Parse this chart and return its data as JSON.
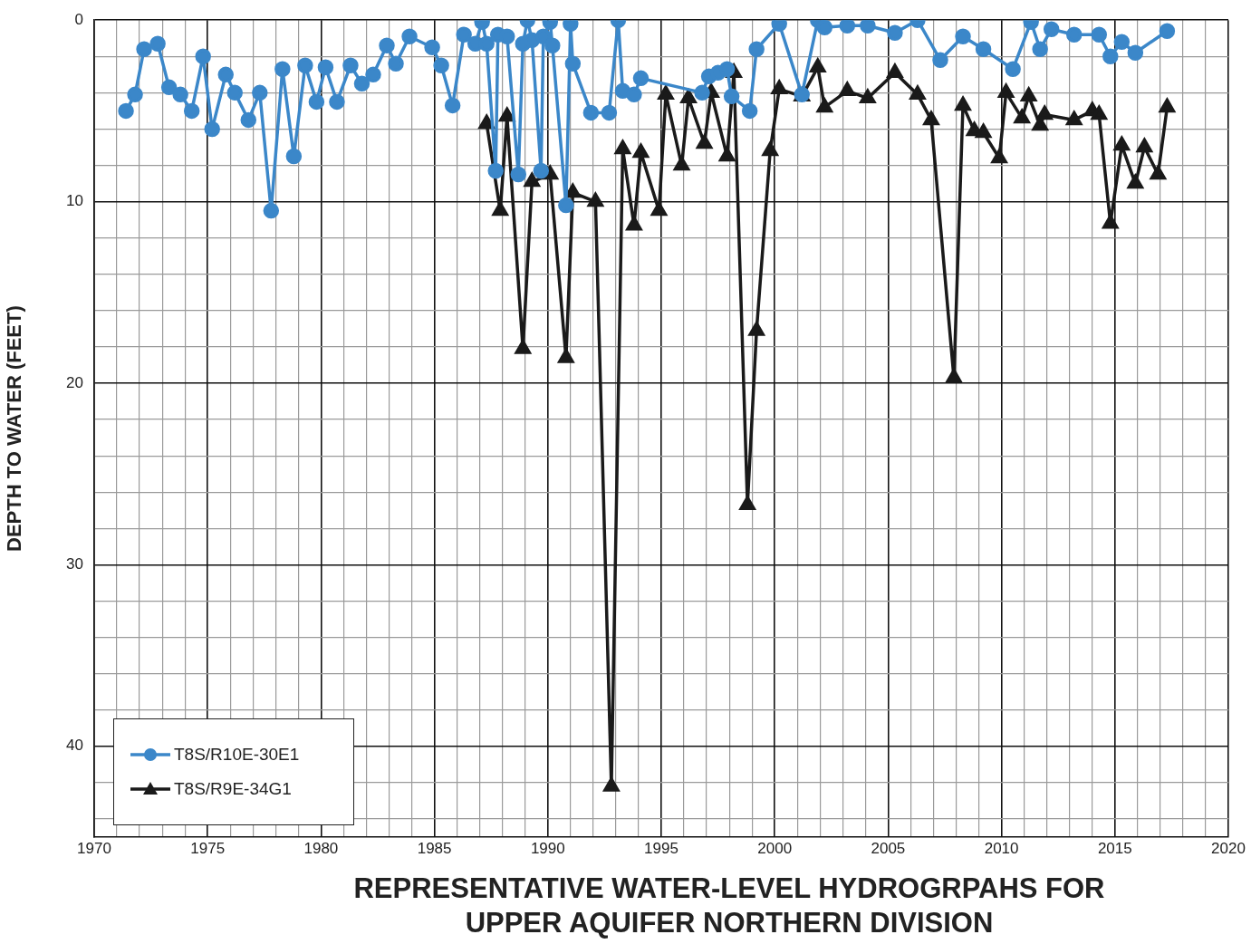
{
  "chart_data": {
    "type": "line",
    "title": "REPRESENTATIVE WATER-LEVEL HYDROGRPAHS FOR UPPER AQUIFER NORTHERN DIVISION",
    "ylabel": "DEPTH TO WATER (FEET)",
    "xlim": [
      1970,
      2020
    ],
    "ylim": [
      45,
      0
    ],
    "xticks": [
      1970,
      {
        "value": 1971,
        "label": null
      },
      {
        "value": 1972,
        "label": null
      },
      {
        "value": 1973,
        "label": null
      },
      {
        "value": 1974,
        "label": null
      },
      1975,
      {
        "value": 1976,
        "label": null
      },
      {
        "value": 1977,
        "label": null
      },
      {
        "value": 1978,
        "label": null
      },
      {
        "value": 1979,
        "label": null
      },
      1980,
      {
        "value": 1981,
        "label": null
      },
      {
        "value": 1982,
        "label": null
      },
      {
        "value": 1983,
        "label": null
      },
      {
        "value": 1984,
        "label": null
      },
      1985,
      {
        "value": 1986,
        "label": null
      },
      {
        "value": 1987,
        "label": null
      },
      {
        "value": 1988,
        "label": null
      },
      {
        "value": 1989,
        "label": null
      },
      1990,
      {
        "value": 1991,
        "label": null
      },
      {
        "value": 1992,
        "label": null
      },
      {
        "value": 1993,
        "label": null
      },
      {
        "value": 1994,
        "label": null
      },
      1995,
      {
        "value": 1996,
        "label": null
      },
      {
        "value": 1997,
        "label": null
      },
      {
        "value": 1998,
        "label": null
      },
      {
        "value": 1999,
        "label": null
      },
      2000,
      {
        "value": 2001,
        "label": null
      },
      {
        "value": 2002,
        "label": null
      },
      {
        "value": 2003,
        "label": null
      },
      {
        "value": 2004,
        "label": null
      },
      2005,
      {
        "value": 2006,
        "label": null
      },
      {
        "value": 2007,
        "label": null
      },
      {
        "value": 2008,
        "label": null
      },
      {
        "value": 2009,
        "label": null
      },
      2010,
      {
        "value": 2011,
        "label": null
      },
      {
        "value": 2012,
        "label": null
      },
      {
        "value": 2013,
        "label": null
      },
      {
        "value": 2014,
        "label": null
      },
      2015,
      {
        "value": 2016,
        "label": null
      },
      {
        "value": 2017,
        "label": null
      },
      {
        "value": 2018,
        "label": null
      },
      {
        "value": 2019,
        "label": null
      },
      2020
    ],
    "yticks": [
      0,
      {
        "value": 2,
        "label": null
      },
      {
        "value": 4,
        "label": null
      },
      {
        "value": 6,
        "label": null
      },
      {
        "value": 8,
        "label": null
      },
      10,
      {
        "value": 12,
        "label": null
      },
      {
        "value": 14,
        "label": null
      },
      {
        "value": 16,
        "label": null
      },
      {
        "value": 18,
        "label": null
      },
      20,
      {
        "value": 22,
        "label": null
      },
      {
        "value": 24,
        "label": null
      },
      {
        "value": 26,
        "label": null
      },
      {
        "value": 28,
        "label": null
      },
      30,
      {
        "value": 32,
        "label": null
      },
      {
        "value": 34,
        "label": null
      },
      {
        "value": 36,
        "label": null
      },
      {
        "value": 38,
        "label": null
      },
      40,
      {
        "value": 42,
        "label": null
      },
      {
        "value": 44,
        "label": null
      }
    ],
    "grid": true,
    "legend": "bottom left",
    "line_style": "solid",
    "series": [
      {
        "name": "T8S/R10E-30E1",
        "color": "#3b87c9",
        "marker": "circle",
        "x": [
          1971.4,
          1971.8,
          1972.2,
          1972.8,
          1973.3,
          1973.8,
          1974.3,
          1974.8,
          1975.2,
          1975.8,
          1976.2,
          1976.8,
          1977.3,
          1977.8,
          1978.3,
          1978.8,
          1979.3,
          1979.8,
          1980.2,
          1980.7,
          1981.3,
          1981.8,
          1982.3,
          1982.9,
          1983.3,
          1983.9,
          1984.9,
          1985.3,
          1985.8,
          1986.3,
          1986.8,
          1987.1,
          1987.3,
          1987.7,
          1987.8,
          1988.2,
          1988.7,
          1988.9,
          1989.1,
          1989.3,
          1989.7,
          1989.8,
          1990.1,
          1990.2,
          1990.8,
          1991.0,
          1991.1,
          1991.9,
          1992.7,
          1993.1,
          1993.3,
          1993.8,
          1994.1,
          1996.8,
          1997.1,
          1997.5,
          1997.9,
          1998.1,
          1998.9,
          1999.2,
          2000.2,
          2001.2,
          2001.9,
          2002.2,
          2003.2,
          2004.1,
          2005.3,
          2006.3,
          2007.3,
          2008.3,
          2009.2,
          2010.5,
          2011.3,
          2011.7,
          2012.2,
          2013.2,
          2014.3,
          2014.8,
          2015.3,
          2015.9,
          2017.3
        ],
        "values": [
          5.0,
          4.1,
          1.6,
          1.3,
          3.7,
          4.1,
          5.0,
          2.0,
          6.0,
          3.0,
          4.0,
          5.5,
          4.0,
          10.5,
          2.7,
          7.5,
          2.5,
          4.5,
          2.6,
          4.5,
          2.5,
          3.5,
          3.0,
          1.4,
          2.4,
          0.9,
          1.5,
          2.5,
          4.7,
          0.8,
          1.3,
          0.1,
          1.3,
          8.3,
          0.8,
          0.9,
          8.5,
          1.3,
          0,
          1.1,
          8.3,
          0.9,
          0.1,
          1.4,
          10.2,
          0.2,
          2.4,
          5.1,
          5.1,
          0,
          3.9,
          4.1,
          3.2,
          4.0,
          3.1,
          2.9,
          2.7,
          4.2,
          5.0,
          1.6,
          0.2,
          4.1,
          0,
          0.4,
          0.3,
          0.3,
          0.7,
          0,
          2.2,
          0.9,
          1.6,
          2.7,
          0.1,
          1.6,
          0.5,
          0.8,
          0.8,
          2.0,
          1.2,
          1.8,
          0.6
        ]
      },
      {
        "name": "T8S/R9E-34G1",
        "color": "#1a1a1a",
        "marker": "triangle",
        "x": [
          1987.3,
          1987.9,
          1988.2,
          1988.9,
          1989.3,
          1990.1,
          1990.8,
          1991.1,
          1992.1,
          1992.8,
          1993.3,
          1993.8,
          1994.1,
          1994.9,
          1995.2,
          1995.9,
          1996.2,
          1996.9,
          1997.2,
          1997.9,
          1998.2,
          1998.8,
          1999.2,
          1999.8,
          2000.2,
          2001.2,
          2001.9,
          2002.2,
          2003.2,
          2004.1,
          2005.3,
          2006.3,
          2006.9,
          2007.9,
          2008.3,
          2008.8,
          2009.2,
          2009.9,
          2010.2,
          2010.9,
          2011.2,
          2011.7,
          2011.9,
          2013.2,
          2014.0,
          2014.3,
          2014.8,
          2015.3,
          2015.9,
          2016.3,
          2016.9,
          2017.3
        ],
        "values": [
          5.7,
          10.5,
          5.3,
          18.1,
          8.9,
          8.5,
          18.6,
          9.5,
          10.0,
          42.2,
          7.1,
          11.3,
          7.3,
          10.5,
          4.1,
          8.0,
          4.3,
          6.8,
          4.0,
          7.5,
          2.9,
          26.7,
          17.1,
          7.2,
          3.8,
          4.2,
          2.6,
          4.8,
          3.9,
          4.3,
          2.9,
          4.1,
          5.5,
          19.7,
          4.7,
          6.1,
          6.2,
          7.6,
          4.0,
          5.4,
          4.2,
          5.8,
          5.2,
          5.5,
          5.0,
          5.2,
          11.2,
          6.9,
          9.0,
          7.0,
          8.5,
          4.8
        ]
      }
    ]
  }
}
